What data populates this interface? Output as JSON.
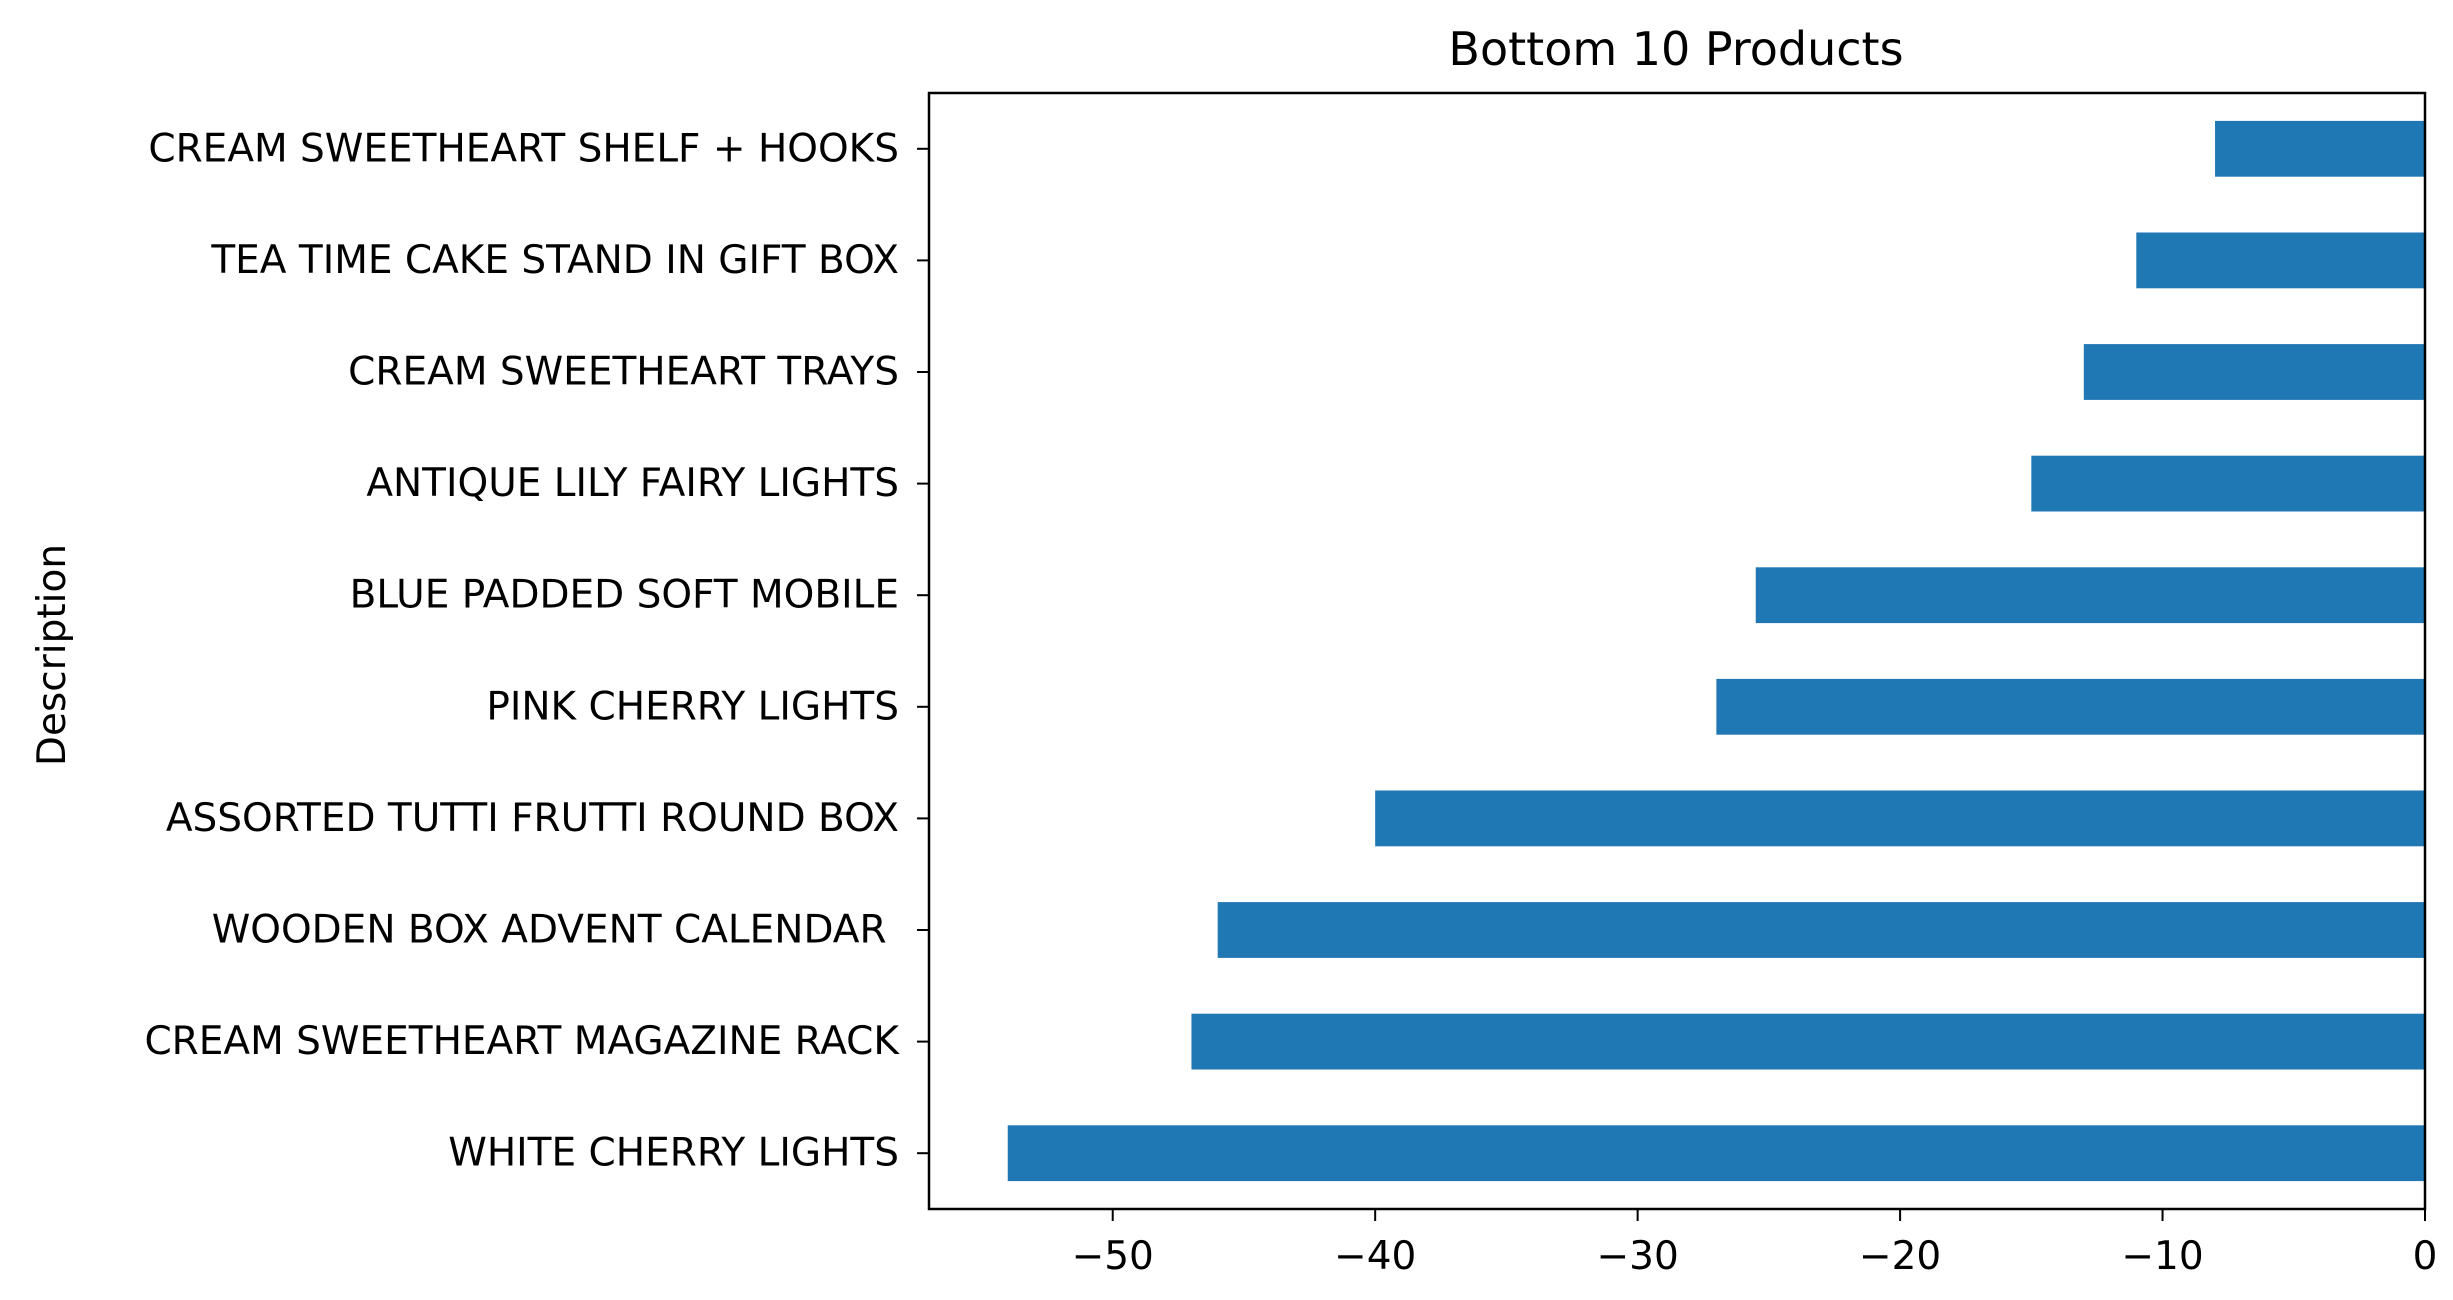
{
  "chart_data": {
    "type": "bar",
    "orientation": "horizontal",
    "title": "Bottom 10 Products",
    "xlabel": "",
    "ylabel": "Description",
    "categories": [
      "WHITE CHERRY LIGHTS",
      "CREAM SWEETHEART MAGAZINE RACK",
      "WOODEN BOX ADVENT CALENDAR ",
      "ASSORTED TUTTI FRUTTI ROUND BOX",
      "PINK CHERRY LIGHTS",
      "BLUE PADDED SOFT MOBILE",
      "ANTIQUE LILY FAIRY LIGHTS",
      "CREAM SWEETHEART TRAYS",
      "TEA TIME CAKE STAND IN GIFT BOX",
      "CREAM SWEETHEART SHELF + HOOKS"
    ],
    "values": [
      -54,
      -47,
      -46,
      -40,
      -27,
      -25.5,
      -15,
      -13,
      -11,
      -8
    ],
    "xlim": [
      -57,
      0
    ],
    "xticks": [
      -50,
      -40,
      -30,
      -20,
      -10,
      0
    ],
    "xtick_labels": [
      "−50",
      "−40",
      "−30",
      "−20",
      "−10",
      "0"
    ],
    "grid": false,
    "bar_color": "#1f77b4"
  }
}
